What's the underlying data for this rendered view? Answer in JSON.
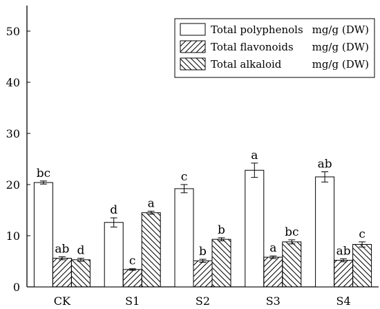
{
  "chart_data": {
    "type": "bar",
    "categories": [
      "CK",
      "S1",
      "S2",
      "S3",
      "S4"
    ],
    "ylim": [
      0,
      55
    ],
    "yticks": [
      0,
      10,
      20,
      30,
      40,
      50
    ],
    "grid": false,
    "legend_position": "top-right",
    "series": [
      {
        "name": "Total polyphenols",
        "unit": "mg/g (DW)",
        "pattern": "none",
        "values": [
          20.4,
          12.6,
          19.2,
          22.8,
          21.5
        ],
        "errors": [
          0.3,
          0.9,
          0.8,
          1.4,
          1.0
        ],
        "letters": [
          "bc",
          "d",
          "c",
          "a",
          "ab"
        ]
      },
      {
        "name": "Total flavonoids",
        "unit": "mg/g (DW)",
        "pattern": "forward-diagonal",
        "values": [
          5.6,
          3.4,
          5.1,
          5.8,
          5.2
        ],
        "errors": [
          0.3,
          0.15,
          0.3,
          0.25,
          0.3
        ],
        "letters": [
          "ab",
          "c",
          "b",
          "a",
          "ab"
        ]
      },
      {
        "name": "Total alkaloid",
        "unit": "mg/g (DW)",
        "pattern": "back-diagonal",
        "values": [
          5.3,
          14.5,
          9.3,
          8.8,
          8.3
        ],
        "errors": [
          0.3,
          0.3,
          0.3,
          0.4,
          0.5
        ],
        "letters": [
          "d",
          "a",
          "b",
          "bc",
          "c"
        ]
      }
    ]
  }
}
